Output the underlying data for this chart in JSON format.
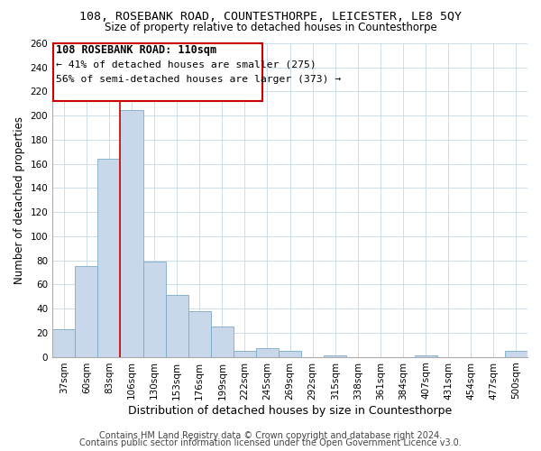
{
  "title": "108, ROSEBANK ROAD, COUNTESTHORPE, LEICESTER, LE8 5QY",
  "subtitle": "Size of property relative to detached houses in Countesthorpe",
  "xlabel": "Distribution of detached houses by size in Countesthorpe",
  "ylabel": "Number of detached properties",
  "bin_labels": [
    "37sqm",
    "60sqm",
    "83sqm",
    "106sqm",
    "130sqm",
    "153sqm",
    "176sqm",
    "199sqm",
    "222sqm",
    "245sqm",
    "269sqm",
    "292sqm",
    "315sqm",
    "338sqm",
    "361sqm",
    "384sqm",
    "407sqm",
    "431sqm",
    "454sqm",
    "477sqm",
    "500sqm"
  ],
  "bar_heights": [
    23,
    75,
    164,
    205,
    79,
    51,
    38,
    25,
    5,
    7,
    5,
    0,
    1,
    0,
    0,
    0,
    1,
    0,
    0,
    0,
    5
  ],
  "bar_color": "#c8d8ea",
  "bar_edgecolor": "#7aaac8",
  "vline_color": "#cc0000",
  "ylim": [
    0,
    260
  ],
  "yticks": [
    0,
    20,
    40,
    60,
    80,
    100,
    120,
    140,
    160,
    180,
    200,
    220,
    240,
    260
  ],
  "annotation_title": "108 ROSEBANK ROAD: 110sqm",
  "annotation_line1": "← 41% of detached houses are smaller (275)",
  "annotation_line2": "56% of semi-detached houses are larger (373) →",
  "annotation_box_color": "#ffffff",
  "annotation_box_edgecolor": "#cc0000",
  "footer1": "Contains HM Land Registry data © Crown copyright and database right 2024.",
  "footer2": "Contains public sector information licensed under the Open Government Licence v3.0.",
  "background_color": "#ffffff",
  "grid_color": "#ccdde8",
  "title_fontsize": 9.5,
  "subtitle_fontsize": 8.5,
  "xlabel_fontsize": 9,
  "ylabel_fontsize": 8.5,
  "tick_fontsize": 7.5,
  "ann_title_fontsize": 8.5,
  "ann_body_fontsize": 8.2,
  "footer_fontsize": 7
}
